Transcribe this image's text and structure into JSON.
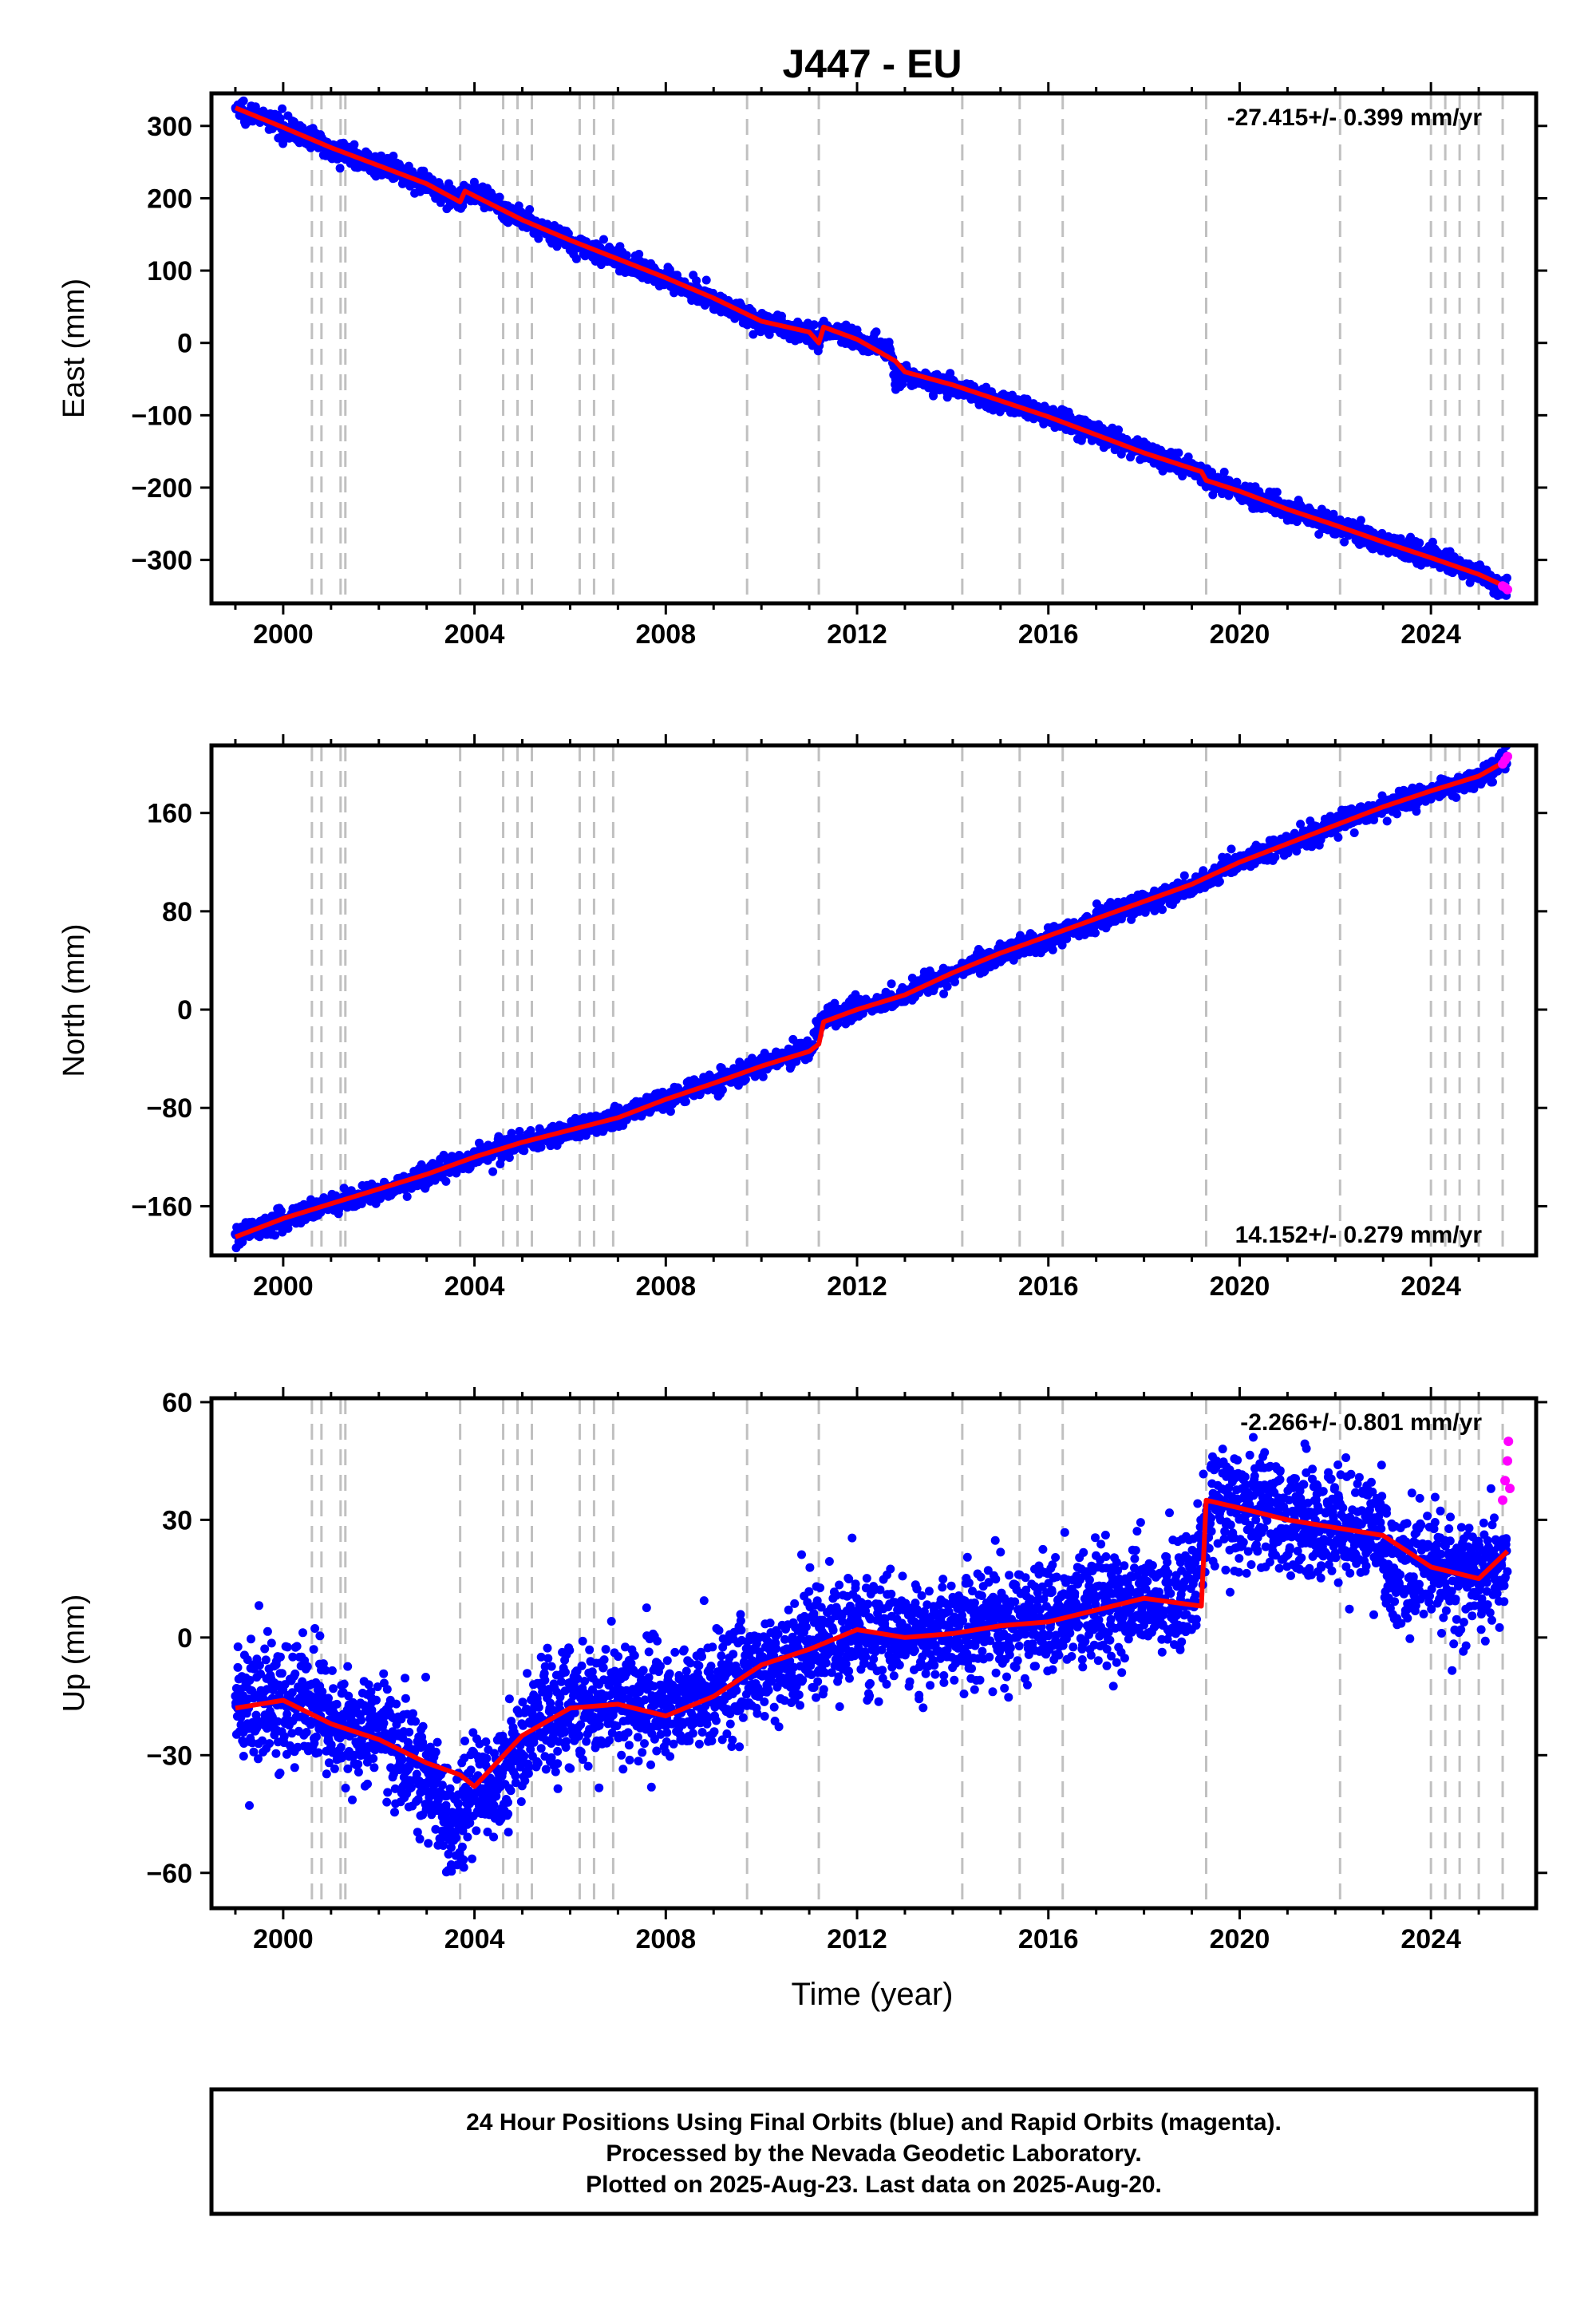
{
  "title": "J447 - EU",
  "xlabel": "Time (year)",
  "footer": {
    "line1": "24 Hour Positions Using Final Orbits (blue) and Rapid Orbits (magenta).",
    "line2": "Processed by the Nevada Geodetic Laboratory.",
    "line3": "Plotted on 2025-Aug-23. Last data on 2025-Aug-20."
  },
  "colors": {
    "final_orbits": "#0000ff",
    "rapid_orbits": "#ff00ff",
    "model": "#ff0000",
    "steps": "#c0c0c0"
  },
  "chart_data": [
    {
      "type": "scatter",
      "component": "east",
      "ylabel": "East (mm)",
      "rate_text": "-27.415+/- 0.399 mm/yr",
      "rate_position": "top-right",
      "xlim": [
        1998.5,
        2026.2
      ],
      "ylim": [
        -360,
        345
      ],
      "x_ticks": [
        2000,
        2004,
        2008,
        2012,
        2016,
        2020,
        2024
      ],
      "y_ticks": [
        300,
        200,
        100,
        0,
        -100,
        -200,
        -300
      ],
      "step_epochs": [
        2000.6,
        2000.8,
        2001.2,
        2001.3,
        2003.7,
        2004.6,
        2004.9,
        2005.2,
        2006.2,
        2006.5,
        2006.9,
        2009.7,
        2011.2,
        2014.2,
        2015.4,
        2016.3,
        2019.3,
        2022.1,
        2024.0,
        2024.3,
        2024.6,
        2025.0,
        2025.5
      ],
      "series": [
        {
          "kind": "final",
          "x": [
            1999.0,
            2000.0,
            2001.0,
            2002.0,
            2003.0,
            2003.7,
            2003.8,
            2005.0,
            2006.0,
            2007.0,
            2008.0,
            2009.0,
            2010.0,
            2011.0,
            2011.2,
            2011.3,
            2012.0,
            2012.7,
            2012.8,
            2013.0,
            2014.0,
            2015.0,
            2016.0,
            2017.0,
            2018.0,
            2019.0,
            2019.3,
            2020.0,
            2021.0,
            2022.0,
            2023.0,
            2024.0,
            2025.0,
            2025.6
          ],
          "y": [
            325,
            300,
            270,
            245,
            220,
            195,
            212,
            170,
            140,
            115,
            90,
            60,
            28,
            12,
            -2,
            20,
            5,
            -10,
            -50,
            -45,
            -60,
            -80,
            -100,
            -125,
            -150,
            -175,
            -185,
            -205,
            -230,
            -250,
            -275,
            -295,
            -320,
            -340
          ]
        },
        {
          "kind": "rapid",
          "x": [
            2025.5,
            2025.55,
            2025.6
          ],
          "y": [
            -336,
            -338,
            -341
          ]
        }
      ],
      "model": {
        "x": [
          1999.0,
          2000.0,
          2001.0,
          2002.0,
          2003.0,
          2003.7,
          2003.8,
          2005.0,
          2006.0,
          2007.0,
          2008.0,
          2009.0,
          2010.0,
          2011.0,
          2011.2,
          2011.3,
          2012.0,
          2012.8,
          2013.0,
          2014.0,
          2015.0,
          2016.0,
          2017.0,
          2018.0,
          2019.2,
          2019.3,
          2020.0,
          2021.0,
          2022.0,
          2023.0,
          2024.0,
          2025.0,
          2025.6
        ],
        "y": [
          325,
          298,
          270,
          245,
          220,
          195,
          210,
          170,
          142,
          116,
          90,
          62,
          30,
          15,
          0,
          22,
          5,
          -25,
          -40,
          -58,
          -80,
          -102,
          -127,
          -152,
          -178,
          -190,
          -205,
          -230,
          -252,
          -275,
          -297,
          -320,
          -338
        ]
      }
    },
    {
      "type": "scatter",
      "component": "north",
      "ylabel": "North (mm)",
      "rate_text": "14.152+/- 0.279 mm/yr",
      "rate_position": "bottom-right",
      "xlim": [
        1998.5,
        2026.2
      ],
      "ylim": [
        -200,
        215
      ],
      "x_ticks": [
        2000,
        2004,
        2008,
        2012,
        2016,
        2020,
        2024
      ],
      "y_ticks": [
        160,
        80,
        0,
        -80,
        -160
      ],
      "step_epochs": [
        2000.6,
        2000.8,
        2001.2,
        2001.3,
        2003.7,
        2004.6,
        2004.9,
        2005.2,
        2006.2,
        2006.5,
        2006.9,
        2009.7,
        2011.2,
        2014.2,
        2015.4,
        2016.3,
        2019.3,
        2022.1,
        2024.0,
        2024.3,
        2024.6,
        2025.0,
        2025.5
      ],
      "series": [
        {
          "kind": "final",
          "x": [
            1999.0,
            2000.0,
            2001.0,
            2002.0,
            2003.0,
            2004.0,
            2005.0,
            2006.0,
            2007.0,
            2008.0,
            2009.0,
            2010.0,
            2011.0,
            2011.3,
            2012.0,
            2013.0,
            2014.0,
            2015.0,
            2016.0,
            2017.0,
            2018.0,
            2019.0,
            2020.0,
            2021.0,
            2022.0,
            2023.0,
            2024.0,
            2025.0,
            2025.6
          ],
          "y": [
            -183,
            -170,
            -158,
            -148,
            -135,
            -120,
            -108,
            -98,
            -88,
            -72,
            -60,
            -45,
            -32,
            -8,
            2,
            12,
            30,
            45,
            58,
            72,
            88,
            100,
            120,
            135,
            150,
            165,
            178,
            188,
            205
          ]
        },
        {
          "kind": "rapid",
          "x": [
            2025.5,
            2025.55,
            2025.6
          ],
          "y": [
            200,
            203,
            206
          ]
        }
      ],
      "model": {
        "x": [
          1999.0,
          2000.0,
          2001.0,
          2002.0,
          2003.0,
          2004.0,
          2005.0,
          2006.0,
          2007.0,
          2008.0,
          2009.0,
          2010.0,
          2011.0,
          2011.2,
          2011.3,
          2012.0,
          2013.0,
          2014.0,
          2015.0,
          2016.0,
          2017.0,
          2018.0,
          2019.0,
          2020.0,
          2021.0,
          2022.0,
          2023.0,
          2024.0,
          2025.0,
          2025.6
        ],
        "y": [
          -185,
          -170,
          -158,
          -146,
          -134,
          -120,
          -108,
          -98,
          -88,
          -73,
          -60,
          -46,
          -34,
          -28,
          -10,
          0,
          12,
          30,
          46,
          60,
          74,
          88,
          102,
          120,
          135,
          150,
          165,
          178,
          190,
          203
        ]
      }
    },
    {
      "type": "scatter",
      "component": "up",
      "ylabel": "Up (mm)",
      "rate_text": "-2.266+/- 0.801 mm/yr",
      "rate_position": "top-right",
      "xlim": [
        1998.5,
        2026.2
      ],
      "ylim": [
        -69,
        61
      ],
      "x_ticks": [
        2000,
        2004,
        2008,
        2012,
        2016,
        2020,
        2024
      ],
      "y_ticks": [
        60,
        30,
        0,
        -30,
        -60
      ],
      "step_epochs": [
        2000.6,
        2000.8,
        2001.2,
        2001.3,
        2003.7,
        2004.6,
        2004.9,
        2005.2,
        2006.2,
        2006.5,
        2006.9,
        2009.7,
        2011.2,
        2014.2,
        2015.4,
        2016.3,
        2019.3,
        2022.1,
        2024.0,
        2024.3,
        2024.6,
        2025.0,
        2025.5
      ],
      "series": [
        {
          "kind": "final",
          "x": [
            1999.0,
            2000.0,
            2001.0,
            2002.0,
            2003.0,
            2003.5,
            2004.0,
            2004.5,
            2005.0,
            2006.0,
            2007.0,
            2008.0,
            2009.0,
            2010.0,
            2011.0,
            2012.0,
            2013.0,
            2014.0,
            2015.0,
            2016.0,
            2017.0,
            2018.0,
            2019.0,
            2019.4,
            2020.0,
            2021.0,
            2022.0,
            2023.0,
            2023.1,
            2024.0,
            2025.0,
            2025.6
          ],
          "y": [
            -18,
            -15,
            -22,
            -25,
            -33,
            -48,
            -40,
            -38,
            -25,
            -18,
            -15,
            -18,
            -14,
            -8,
            -2,
            3,
            0,
            2,
            4,
            5,
            8,
            10,
            10,
            35,
            32,
            30,
            28,
            26,
            15,
            18,
            15,
            20
          ]
        },
        {
          "kind": "rapid",
          "x": [
            2025.5,
            2025.55,
            2025.6,
            2025.62,
            2025.65
          ],
          "y": [
            35,
            40,
            45,
            50,
            38
          ]
        }
      ],
      "model": {
        "x": [
          1999.0,
          2000.0,
          2001.0,
          2002.0,
          2003.0,
          2003.7,
          2004.0,
          2005.0,
          2006.0,
          2007.0,
          2008.0,
          2009.0,
          2010.0,
          2011.0,
          2012.0,
          2013.0,
          2014.0,
          2015.0,
          2016.0,
          2017.0,
          2018.0,
          2019.2,
          2019.3,
          2020.0,
          2021.0,
          2022.0,
          2023.0,
          2024.0,
          2025.0,
          2025.6
        ],
        "y": [
          -18,
          -16,
          -22,
          -26,
          -32,
          -35,
          -38,
          -25,
          -18,
          -17,
          -20,
          -15,
          -7,
          -3,
          2,
          0,
          1,
          3,
          4,
          7,
          10,
          8,
          35,
          33,
          30,
          28,
          26,
          18,
          15,
          22
        ]
      }
    }
  ]
}
